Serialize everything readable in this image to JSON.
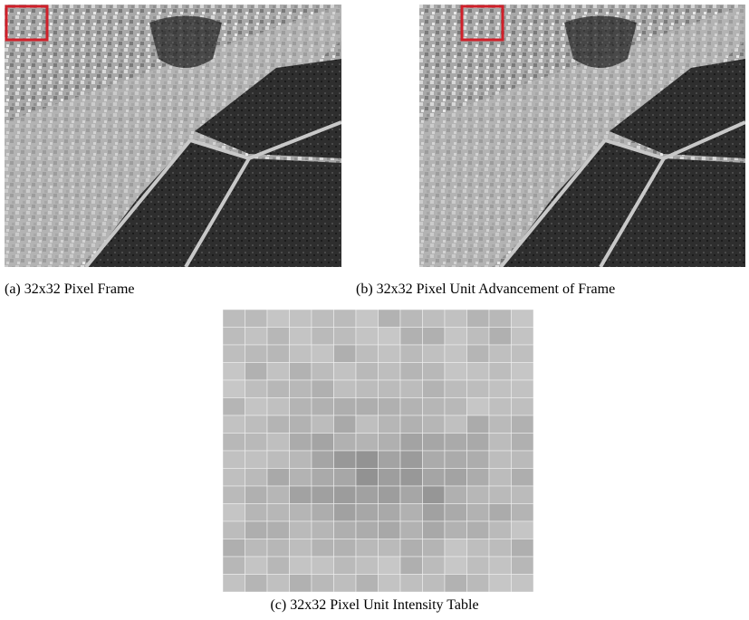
{
  "figure": {
    "panels": [
      {
        "caption": "(a) 32x32 Pixel Frame"
      },
      {
        "caption": "(b) 32x32 Pixel Unit Advancement of Frame"
      },
      {
        "caption": "(c) 32x32 Pixel Unit Intensity Table"
      }
    ]
  }
}
